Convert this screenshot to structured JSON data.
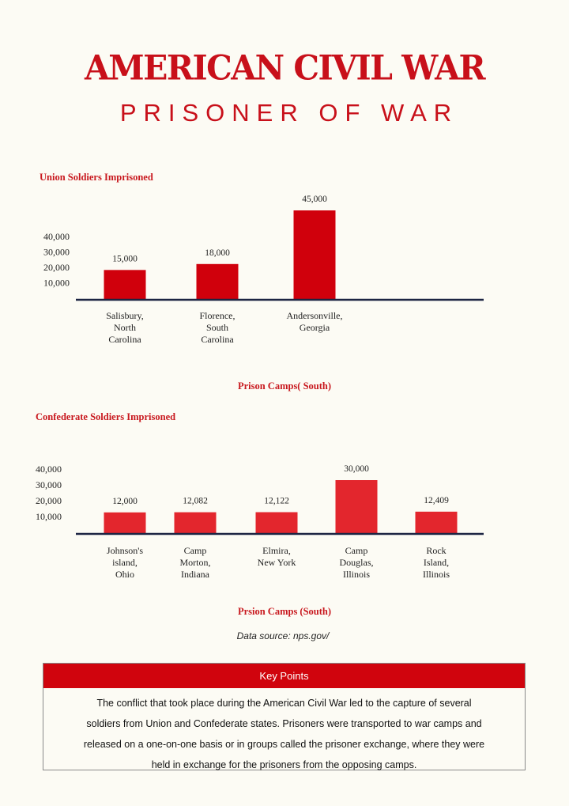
{
  "header": {
    "title": "AMERICAN CIVIL WAR",
    "subtitle": "PRISONER OF WAR"
  },
  "colors": {
    "title_red": "#c8101a",
    "bar_dark_red": "#d0000c",
    "bar_light_red": "#e3262d",
    "axis_navy": "#1c2442",
    "header_red": "#d0040d"
  },
  "chart_data": [
    {
      "type": "bar",
      "title": "Union Soldiers Imprisoned",
      "xlabel": "Prison Camps( South)",
      "ylabel": "",
      "yticks": [
        "40,000",
        "30,000",
        "20,000",
        "10,000"
      ],
      "categories": [
        [
          "Salisbury,",
          "North",
          "Carolina"
        ],
        [
          "Florence,",
          "South",
          "Carolina"
        ],
        [
          "Andersonville,",
          "Georgia"
        ]
      ],
      "values": [
        15000,
        18000,
        45000
      ],
      "value_labels": [
        "15,000",
        "18,000",
        "45,000"
      ],
      "grid": false,
      "legend": "none"
    },
    {
      "type": "bar",
      "title": "Confederate Soldiers Imprisoned",
      "xlabel": "Prsion Camps (South)",
      "ylabel": "",
      "yticks": [
        "40,000",
        "30,000",
        "20,000",
        "10,000"
      ],
      "categories": [
        [
          "Johnson's",
          "island,",
          "Ohio"
        ],
        [
          "Camp",
          "Morton,",
          "Indiana"
        ],
        [
          "Elmira,",
          "New York"
        ],
        [
          "Camp",
          "Douglas,",
          "Illinois"
        ],
        [
          "Rock",
          "Island,",
          "Illinois"
        ]
      ],
      "values": [
        12000,
        12082,
        12122,
        30000,
        12409
      ],
      "value_labels": [
        "12,000",
        "12,082",
        "12,122",
        "30,000",
        "12,409"
      ],
      "grid": false,
      "legend": "none"
    }
  ],
  "source": "Data source: nps.gov/",
  "key_points": {
    "heading": "Key Points",
    "lines": [
      "The conflict that took place during the American Civil War led to the capture of several",
      "soldiers from Union and Confederate states. Prisoners were transported to war camps and",
      "released on a one-on-one basis or in groups called the prisoner exchange, where they were",
      "held in exchange for the prisoners from the opposing camps."
    ]
  }
}
